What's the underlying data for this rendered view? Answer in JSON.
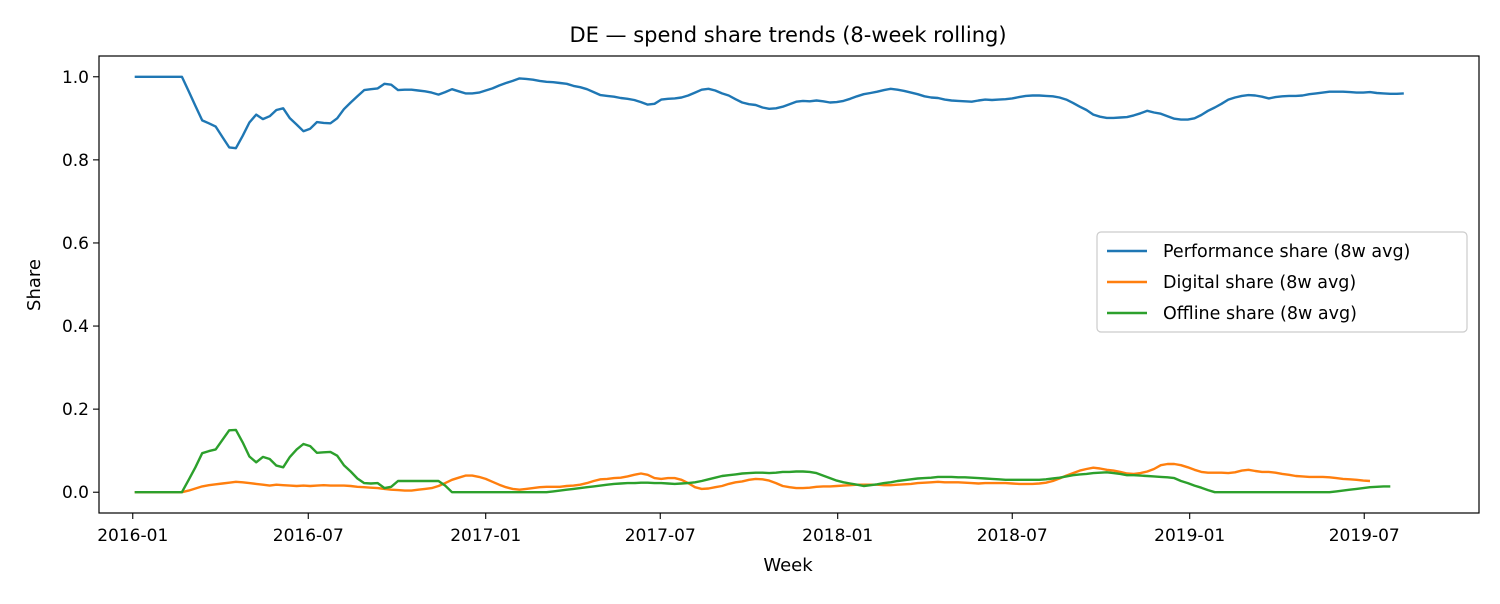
{
  "chart_data": {
    "type": "line",
    "title": "DE — spend share trends (8-week rolling)",
    "xlabel": "Week",
    "ylabel": "Share",
    "x_start": "2016-01-03",
    "x_step_days": 7,
    "x_ticks": [
      "2016-01",
      "2016-07",
      "2017-01",
      "2017-07",
      "2018-01",
      "2018-07",
      "2019-01",
      "2019-07"
    ],
    "y_ticks": [
      0.0,
      0.2,
      0.4,
      0.6,
      0.8,
      1.0
    ],
    "y_tick_labels": [
      "0.0",
      "0.2",
      "0.4",
      "0.6",
      "0.8",
      "1.0"
    ],
    "ylim": [
      -0.05,
      1.05
    ],
    "xlim": [
      "2015-11-27",
      "2019-10-28"
    ],
    "grid": false,
    "legend_position": "center-right",
    "series": [
      {
        "name": "Performance share (8w avg)",
        "color": "#1f77b4",
        "values": [
          1.0,
          1.0,
          1.0,
          1.0,
          1.0,
          1.0,
          1.0,
          1.0,
          0.965,
          0.93,
          0.895,
          0.888,
          0.88,
          0.855,
          0.83,
          0.828,
          0.858,
          0.89,
          0.909,
          0.898,
          0.905,
          0.92,
          0.924,
          0.9,
          0.885,
          0.869,
          0.875,
          0.891,
          0.889,
          0.888,
          0.9,
          0.922,
          0.938,
          0.953,
          0.968,
          0.97,
          0.972,
          0.983,
          0.981,
          0.968,
          0.969,
          0.969,
          0.967,
          0.965,
          0.962,
          0.957,
          0.963,
          0.97,
          0.965,
          0.96,
          0.96,
          0.962,
          0.967,
          0.972,
          0.979,
          0.985,
          0.99,
          0.996,
          0.995,
          0.993,
          0.99,
          0.988,
          0.987,
          0.985,
          0.983,
          0.978,
          0.975,
          0.97,
          0.963,
          0.956,
          0.954,
          0.952,
          0.949,
          0.947,
          0.944,
          0.939,
          0.933,
          0.935,
          0.945,
          0.947,
          0.948,
          0.95,
          0.955,
          0.962,
          0.969,
          0.971,
          0.967,
          0.96,
          0.955,
          0.946,
          0.938,
          0.934,
          0.932,
          0.926,
          0.923,
          0.924,
          0.928,
          0.934,
          0.94,
          0.942,
          0.941,
          0.943,
          0.941,
          0.938,
          0.939,
          0.942,
          0.947,
          0.953,
          0.958,
          0.961,
          0.964,
          0.968,
          0.971,
          0.969,
          0.966,
          0.962,
          0.958,
          0.953,
          0.95,
          0.949,
          0.945,
          0.943,
          0.942,
          0.941,
          0.94,
          0.943,
          0.945,
          0.944,
          0.945,
          0.946,
          0.948,
          0.951,
          0.954,
          0.955,
          0.955,
          0.954,
          0.953,
          0.95,
          0.945,
          0.937,
          0.928,
          0.92,
          0.909,
          0.904,
          0.901,
          0.901,
          0.902,
          0.903,
          0.907,
          0.912,
          0.918,
          0.914,
          0.911,
          0.905,
          0.899,
          0.897,
          0.897,
          0.9,
          0.908,
          0.918,
          0.926,
          0.935,
          0.945,
          0.95,
          0.954,
          0.956,
          0.955,
          0.952,
          0.948,
          0.951,
          0.953,
          0.954,
          0.954,
          0.955,
          0.958,
          0.96,
          0.962,
          0.964,
          0.964,
          0.964,
          0.963,
          0.962,
          0.962,
          0.963,
          0.961,
          0.96,
          0.959,
          0.959,
          0.96
        ]
      },
      {
        "name": "Digital share (8w avg)",
        "color": "#ff7f0e",
        "values": [
          0.0,
          0.0,
          0.0,
          0.0,
          0.0,
          0.0,
          0.0,
          0.0,
          0.004,
          0.009,
          0.014,
          0.017,
          0.019,
          0.021,
          0.023,
          0.025,
          0.024,
          0.022,
          0.02,
          0.018,
          0.016,
          0.018,
          0.017,
          0.016,
          0.015,
          0.016,
          0.015,
          0.016,
          0.017,
          0.016,
          0.016,
          0.016,
          0.015,
          0.013,
          0.012,
          0.011,
          0.01,
          0.008,
          0.006,
          0.005,
          0.004,
          0.004,
          0.006,
          0.008,
          0.01,
          0.015,
          0.022,
          0.03,
          0.035,
          0.04,
          0.04,
          0.037,
          0.032,
          0.025,
          0.018,
          0.012,
          0.008,
          0.006,
          0.008,
          0.01,
          0.012,
          0.013,
          0.013,
          0.013,
          0.015,
          0.016,
          0.018,
          0.022,
          0.027,
          0.031,
          0.032,
          0.034,
          0.035,
          0.038,
          0.042,
          0.045,
          0.042,
          0.034,
          0.032,
          0.034,
          0.034,
          0.03,
          0.022,
          0.012,
          0.008,
          0.009,
          0.012,
          0.015,
          0.02,
          0.024,
          0.026,
          0.03,
          0.032,
          0.031,
          0.028,
          0.022,
          0.015,
          0.012,
          0.01,
          0.01,
          0.011,
          0.013,
          0.014,
          0.014,
          0.015,
          0.016,
          0.017,
          0.018,
          0.018,
          0.018,
          0.018,
          0.017,
          0.017,
          0.018,
          0.019,
          0.02,
          0.022,
          0.023,
          0.024,
          0.025,
          0.024,
          0.024,
          0.024,
          0.023,
          0.022,
          0.021,
          0.022,
          0.022,
          0.022,
          0.022,
          0.021,
          0.02,
          0.02,
          0.02,
          0.021,
          0.023,
          0.027,
          0.033,
          0.04,
          0.046,
          0.052,
          0.056,
          0.059,
          0.057,
          0.054,
          0.052,
          0.049,
          0.045,
          0.044,
          0.046,
          0.05,
          0.056,
          0.065,
          0.068,
          0.068,
          0.065,
          0.06,
          0.054,
          0.049,
          0.047,
          0.047,
          0.047,
          0.046,
          0.048,
          0.052,
          0.054,
          0.051,
          0.049,
          0.049,
          0.047,
          0.044,
          0.042,
          0.039,
          0.038,
          0.037,
          0.037,
          0.037,
          0.036,
          0.034,
          0.032,
          0.031,
          0.03,
          0.028,
          0.027
        ]
      },
      {
        "name": "Offline share (8w avg)",
        "color": "#2ca02c",
        "values": [
          0.0,
          0.0,
          0.0,
          0.0,
          0.0,
          0.0,
          0.0,
          0.0,
          0.03,
          0.06,
          0.094,
          0.099,
          0.103,
          0.126,
          0.149,
          0.15,
          0.12,
          0.086,
          0.072,
          0.085,
          0.08,
          0.064,
          0.06,
          0.085,
          0.103,
          0.116,
          0.111,
          0.095,
          0.096,
          0.097,
          0.088,
          0.065,
          0.05,
          0.033,
          0.022,
          0.021,
          0.022,
          0.01,
          0.013,
          0.027,
          0.027,
          0.027,
          0.027,
          0.027,
          0.027,
          0.027,
          0.016,
          0.0,
          0.0,
          0.0,
          0.0,
          0.0,
          0.0,
          0.0,
          0.0,
          0.0,
          0.0,
          0.0,
          0.0,
          0.0,
          0.0,
          0.0,
          0.002,
          0.004,
          0.006,
          0.008,
          0.01,
          0.012,
          0.014,
          0.016,
          0.018,
          0.02,
          0.021,
          0.022,
          0.022,
          0.023,
          0.023,
          0.022,
          0.022,
          0.021,
          0.02,
          0.021,
          0.022,
          0.024,
          0.027,
          0.031,
          0.035,
          0.039,
          0.041,
          0.043,
          0.045,
          0.046,
          0.047,
          0.047,
          0.046,
          0.047,
          0.049,
          0.049,
          0.05,
          0.05,
          0.049,
          0.046,
          0.04,
          0.034,
          0.028,
          0.024,
          0.021,
          0.018,
          0.015,
          0.017,
          0.019,
          0.022,
          0.024,
          0.027,
          0.029,
          0.031,
          0.033,
          0.034,
          0.035,
          0.037,
          0.037,
          0.037,
          0.036,
          0.036,
          0.035,
          0.034,
          0.033,
          0.032,
          0.031,
          0.03,
          0.03,
          0.03,
          0.03,
          0.03,
          0.03,
          0.031,
          0.033,
          0.035,
          0.038,
          0.041,
          0.043,
          0.044,
          0.046,
          0.047,
          0.048,
          0.046,
          0.044,
          0.041,
          0.041,
          0.04,
          0.039,
          0.038,
          0.037,
          0.036,
          0.034,
          0.027,
          0.022,
          0.016,
          0.011,
          0.005,
          0.0,
          0.0,
          0.0,
          0.0,
          0.0,
          0.0,
          0.0,
          0.0,
          0.0,
          0.0,
          0.0,
          0.0,
          0.0,
          0.0,
          0.0,
          0.0,
          0.0,
          0.0,
          0.002,
          0.004,
          0.006,
          0.008,
          0.01,
          0.012,
          0.013,
          0.014,
          0.014
        ]
      }
    ]
  }
}
